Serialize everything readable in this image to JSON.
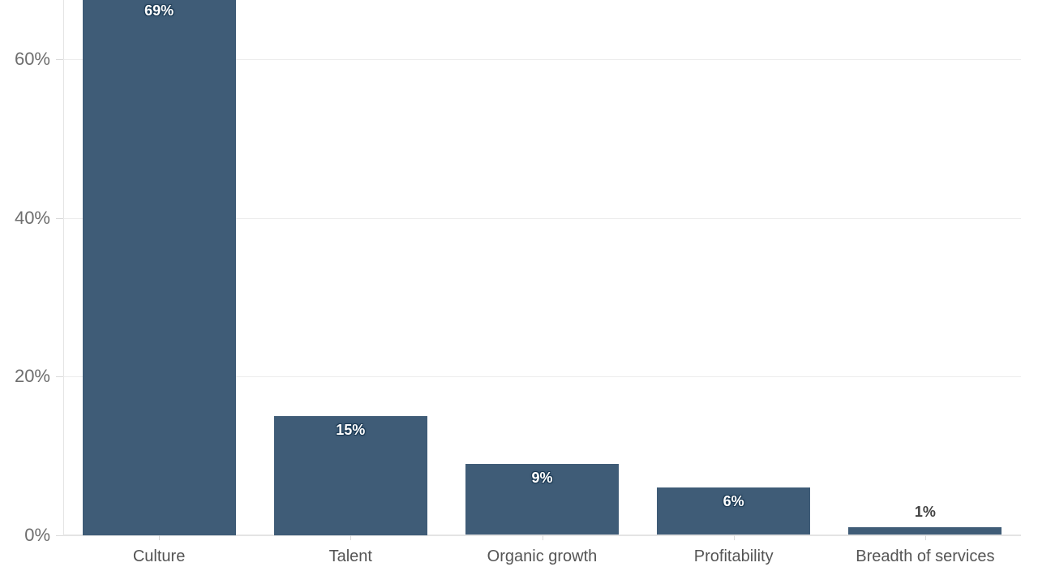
{
  "chart_data": {
    "type": "bar",
    "title": "",
    "xlabel": "",
    "ylabel": "",
    "categories": [
      "Culture",
      "Talent",
      "Organic growth",
      "Profitability",
      "Breadth of services"
    ],
    "values": [
      69,
      15,
      9,
      6,
      1
    ],
    "value_labels": [
      "69%",
      "15%",
      "9%",
      "6%",
      "1%"
    ],
    "y_axis": {
      "tick_values": [
        0,
        20,
        40,
        60
      ],
      "tick_labels": [
        "0%",
        "20%",
        "40%",
        "60%"
      ],
      "unit": "%"
    },
    "ylim": [
      0,
      67.5
    ],
    "grid": true,
    "legend": "none",
    "layout_note": "Tallest bar (Culture 69%) extends past the top edge of the view; its value label appears clipped near the top",
    "colors": {
      "bar": "#3f5c77",
      "value_label_text": "#ffffff",
      "value_label_halo": "#1d3b55",
      "value_label_outside": "#414141",
      "y_axis_text": "#6e6e6e",
      "x_axis_text": "#555555",
      "gridline": "#ececec",
      "axis_line": "#e4e4e4",
      "background": "#ffffff"
    }
  }
}
